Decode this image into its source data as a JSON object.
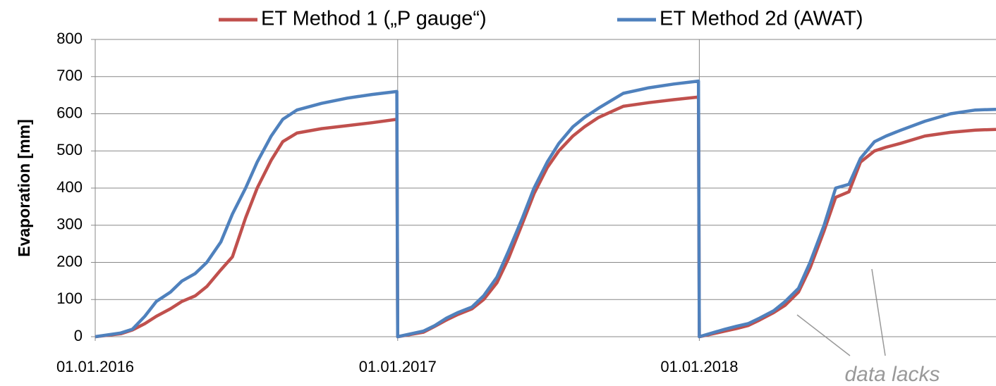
{
  "chart_data": {
    "type": "line",
    "ylabel": "Evaporation [mm]",
    "annotation": "data lacks",
    "x": [
      "2016-01-01",
      "2016-02-01",
      "2016-02-15",
      "2016-03-01",
      "2016-03-15",
      "2016-04-01",
      "2016-04-15",
      "2016-05-01",
      "2016-05-15",
      "2016-06-01",
      "2016-06-15",
      "2016-07-01",
      "2016-07-15",
      "2016-08-01",
      "2016-08-15",
      "2016-09-01",
      "2016-10-01",
      "2016-11-01",
      "2016-12-01",
      "2016-12-31",
      "2017-01-01",
      "2017-02-01",
      "2017-02-15",
      "2017-03-01",
      "2017-03-15",
      "2017-04-01",
      "2017-04-15",
      "2017-05-01",
      "2017-05-15",
      "2017-06-01",
      "2017-06-15",
      "2017-07-01",
      "2017-07-15",
      "2017-08-01",
      "2017-08-15",
      "2017-09-01",
      "2017-10-01",
      "2017-11-01",
      "2017-12-01",
      "2017-12-31",
      "2018-01-01",
      "2018-02-01",
      "2018-02-15",
      "2018-03-01",
      "2018-03-15",
      "2018-04-01",
      "2018-04-15",
      "2018-05-01",
      "2018-05-15",
      "2018-06-01",
      "2018-06-15",
      "2018-07-01",
      "2018-07-15",
      "2018-08-01",
      "2018-08-15",
      "2018-09-01",
      "2018-10-01",
      "2018-11-01",
      "2018-12-01",
      "2018-12-26"
    ],
    "series": [
      {
        "name": "ET Method 1 („P gauge“)",
        "color": "#c0504d",
        "values": [
          0,
          8,
          18,
          35,
          55,
          75,
          95,
          110,
          135,
          180,
          215,
          320,
          400,
          475,
          525,
          548,
          560,
          568,
          576,
          585,
          0,
          12,
          28,
          45,
          60,
          75,
          100,
          145,
          210,
          305,
          385,
          455,
          500,
          540,
          565,
          590,
          620,
          630,
          638,
          645,
          0,
          15,
          22,
          30,
          45,
          65,
          85,
          120,
          185,
          285,
          375,
          390,
          470,
          500,
          510,
          520,
          540,
          550,
          556,
          558
        ]
      },
      {
        "name": "ET Method 2d (AWAT)",
        "color": "#4f81bd",
        "values": [
          0,
          10,
          20,
          55,
          95,
          120,
          150,
          170,
          200,
          255,
          330,
          400,
          470,
          540,
          585,
          610,
          628,
          642,
          652,
          660,
          0,
          15,
          30,
          50,
          65,
          80,
          110,
          160,
          230,
          320,
          400,
          470,
          520,
          565,
          590,
          615,
          655,
          670,
          680,
          688,
          0,
          20,
          28,
          35,
          50,
          70,
          95,
          130,
          200,
          300,
          400,
          410,
          480,
          525,
          540,
          555,
          580,
          600,
          610,
          612
        ]
      }
    ],
    "xlim": [
      "2016-01-01",
      "2018-12-26"
    ],
    "xticks": [
      {
        "value": "2016-01-01",
        "label": "01.01.2016"
      },
      {
        "value": "2017-01-01",
        "label": "01.01.2017"
      },
      {
        "value": "2018-01-01",
        "label": "01.01.2018"
      }
    ],
    "ylim": [
      0,
      800
    ],
    "yticks": [
      0,
      100,
      200,
      300,
      400,
      500,
      600,
      700,
      800
    ],
    "grid": true
  }
}
